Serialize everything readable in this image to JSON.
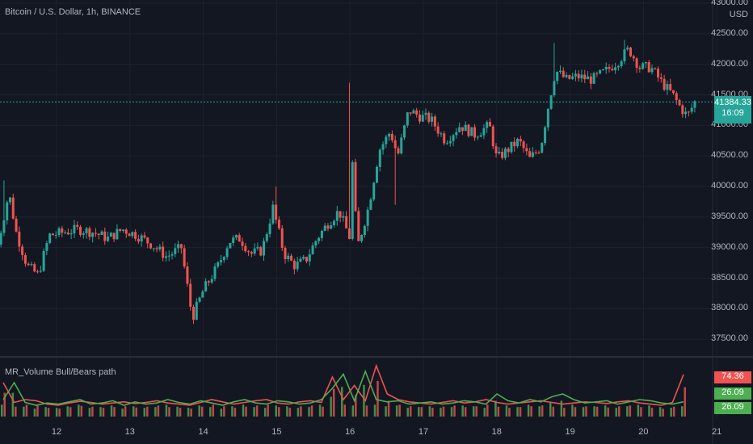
{
  "symbol": {
    "title": "Bitcoin / U.S. Dollar, 1h, BINANCE",
    "currency": "USD"
  },
  "indicator": {
    "title": "MR_Volume Bull/Bears path"
  },
  "price_badge": {
    "price": "41384.33",
    "timer": "16:09",
    "color": "#26a69a"
  },
  "indicator_badges": [
    {
      "value": "74.36",
      "color": "#ef5350"
    },
    {
      "value": "26.09",
      "color": "#4caf50"
    },
    {
      "value": "26.09",
      "color": "#4caf50"
    }
  ],
  "colors": {
    "background": "#131722",
    "up": "#26a69a",
    "down": "#ef5350",
    "bull": "#4caf50",
    "bear": "#ef5350",
    "grid": "#1e222d"
  },
  "chart_data": [
    {
      "type": "candlestick",
      "title": "Bitcoin / U.S. Dollar, 1h, BINANCE",
      "y_unit": "USD",
      "ylim": [
        37000,
        43000
      ],
      "y_ticks": [
        "43000.00",
        "42500.00",
        "42000.00",
        "41500.00",
        "41000.00",
        "40500.00",
        "40000.00",
        "39500.00",
        "39000.00",
        "38500.00",
        "38000.00",
        "37500.00"
      ],
      "x_ticks": [
        "12",
        "13",
        "14",
        "15",
        "16",
        "17",
        "18",
        "19",
        "20",
        "21"
      ],
      "grid": true,
      "last_price": 41384.33,
      "close_path": [
        {
          "day": 11.2,
          "close": 39050
        },
        {
          "day": 11.35,
          "close": 39900
        },
        {
          "day": 11.45,
          "close": 39250
        },
        {
          "day": 11.6,
          "close": 38700
        },
        {
          "day": 11.75,
          "close": 38550
        },
        {
          "day": 11.9,
          "close": 39200
        },
        {
          "day": 12.1,
          "close": 39250
        },
        {
          "day": 12.3,
          "close": 39300
        },
        {
          "day": 12.5,
          "close": 39250
        },
        {
          "day": 12.7,
          "close": 39150
        },
        {
          "day": 12.9,
          "close": 39300
        },
        {
          "day": 13.1,
          "close": 39200
        },
        {
          "day": 13.3,
          "close": 39050
        },
        {
          "day": 13.5,
          "close": 38850
        },
        {
          "day": 13.7,
          "close": 39000
        },
        {
          "day": 13.85,
          "close": 37850
        },
        {
          "day": 14.0,
          "close": 38300
        },
        {
          "day": 14.2,
          "close": 38700
        },
        {
          "day": 14.35,
          "close": 39100
        },
        {
          "day": 14.5,
          "close": 39150
        },
        {
          "day": 14.65,
          "close": 38900
        },
        {
          "day": 14.8,
          "close": 38950
        },
        {
          "day": 14.95,
          "close": 39650
        },
        {
          "day": 15.1,
          "close": 38900
        },
        {
          "day": 15.25,
          "close": 38700
        },
        {
          "day": 15.4,
          "close": 38800
        },
        {
          "day": 15.55,
          "close": 39150
        },
        {
          "day": 15.7,
          "close": 39400
        },
        {
          "day": 15.85,
          "close": 39600
        },
        {
          "day": 16.0,
          "close": 39150
        },
        {
          "day": 16.02,
          "close": 40650
        },
        {
          "day": 16.1,
          "close": 39000
        },
        {
          "day": 16.25,
          "close": 39650
        },
        {
          "day": 16.4,
          "close": 40600
        },
        {
          "day": 16.55,
          "close": 40900
        },
        {
          "day": 16.65,
          "close": 40500
        },
        {
          "day": 16.8,
          "close": 41250
        },
        {
          "day": 16.95,
          "close": 41150
        },
        {
          "day": 17.1,
          "close": 41100
        },
        {
          "day": 17.3,
          "close": 40750
        },
        {
          "day": 17.5,
          "close": 41000
        },
        {
          "day": 17.7,
          "close": 40850
        },
        {
          "day": 17.9,
          "close": 41000
        },
        {
          "day": 18.0,
          "close": 40450
        },
        {
          "day": 18.15,
          "close": 40600
        },
        {
          "day": 18.3,
          "close": 40750
        },
        {
          "day": 18.45,
          "close": 40450
        },
        {
          "day": 18.6,
          "close": 40650
        },
        {
          "day": 18.7,
          "close": 41300
        },
        {
          "day": 18.8,
          "close": 41900
        },
        {
          "day": 18.95,
          "close": 41750
        },
        {
          "day": 19.1,
          "close": 41800
        },
        {
          "day": 19.3,
          "close": 41750
        },
        {
          "day": 19.5,
          "close": 41900
        },
        {
          "day": 19.65,
          "close": 42050
        },
        {
          "day": 19.8,
          "close": 42250
        },
        {
          "day": 19.95,
          "close": 41950
        },
        {
          "day": 20.1,
          "close": 41950
        },
        {
          "day": 20.25,
          "close": 41700
        },
        {
          "day": 20.4,
          "close": 41500
        },
        {
          "day": 20.5,
          "close": 41300
        },
        {
          "day": 20.6,
          "close": 41150
        },
        {
          "day": 20.7,
          "close": 41384
        }
      ],
      "spikes": [
        {
          "day": 11.3,
          "high": 40100
        },
        {
          "day": 13.85,
          "low": 37750
        },
        {
          "day": 15.0,
          "high": 40000
        },
        {
          "day": 16.0,
          "high": 41700
        },
        {
          "day": 16.6,
          "low": 39700
        },
        {
          "day": 18.8,
          "high": 42350
        },
        {
          "day": 19.75,
          "high": 42400
        }
      ]
    },
    {
      "type": "line",
      "title": "MR_Volume Bull/Bears path",
      "ylim": [
        0,
        100
      ],
      "series": [
        {
          "name": "",
          "color": "#ef5350",
          "values": [
            60,
            25,
            30,
            28,
            22,
            20,
            24,
            27,
            25,
            22,
            24,
            26,
            23,
            25,
            28,
            24,
            22,
            20,
            25,
            30,
            26,
            22,
            25,
            28,
            30,
            24,
            22,
            26,
            28,
            25,
            70,
            30,
            55,
            28,
            90,
            40,
            30,
            26,
            24,
            22,
            25,
            28,
            24,
            26,
            30,
            25,
            22,
            24,
            26,
            28,
            25,
            22,
            24,
            26,
            25,
            23,
            26,
            28,
            24,
            22,
            20,
            25,
            74.36
          ]
        },
        {
          "name": "",
          "color": "#4caf50",
          "values": [
            30,
            60,
            25,
            20,
            24,
            22,
            26,
            30,
            22,
            24,
            28,
            20,
            26,
            22,
            24,
            30,
            25,
            22,
            28,
            24,
            20,
            26,
            30,
            24,
            22,
            28,
            26,
            22,
            24,
            30,
            50,
            75,
            28,
            80,
            30,
            26,
            28,
            22,
            24,
            26,
            22,
            24,
            28,
            26,
            22,
            40,
            28,
            24,
            30,
            26,
            35,
            40,
            30,
            24,
            26,
            28,
            22,
            26,
            30,
            28,
            24,
            22,
            26.09
          ]
        }
      ],
      "last_values": [
        74.36,
        26.09,
        26.09
      ]
    }
  ]
}
